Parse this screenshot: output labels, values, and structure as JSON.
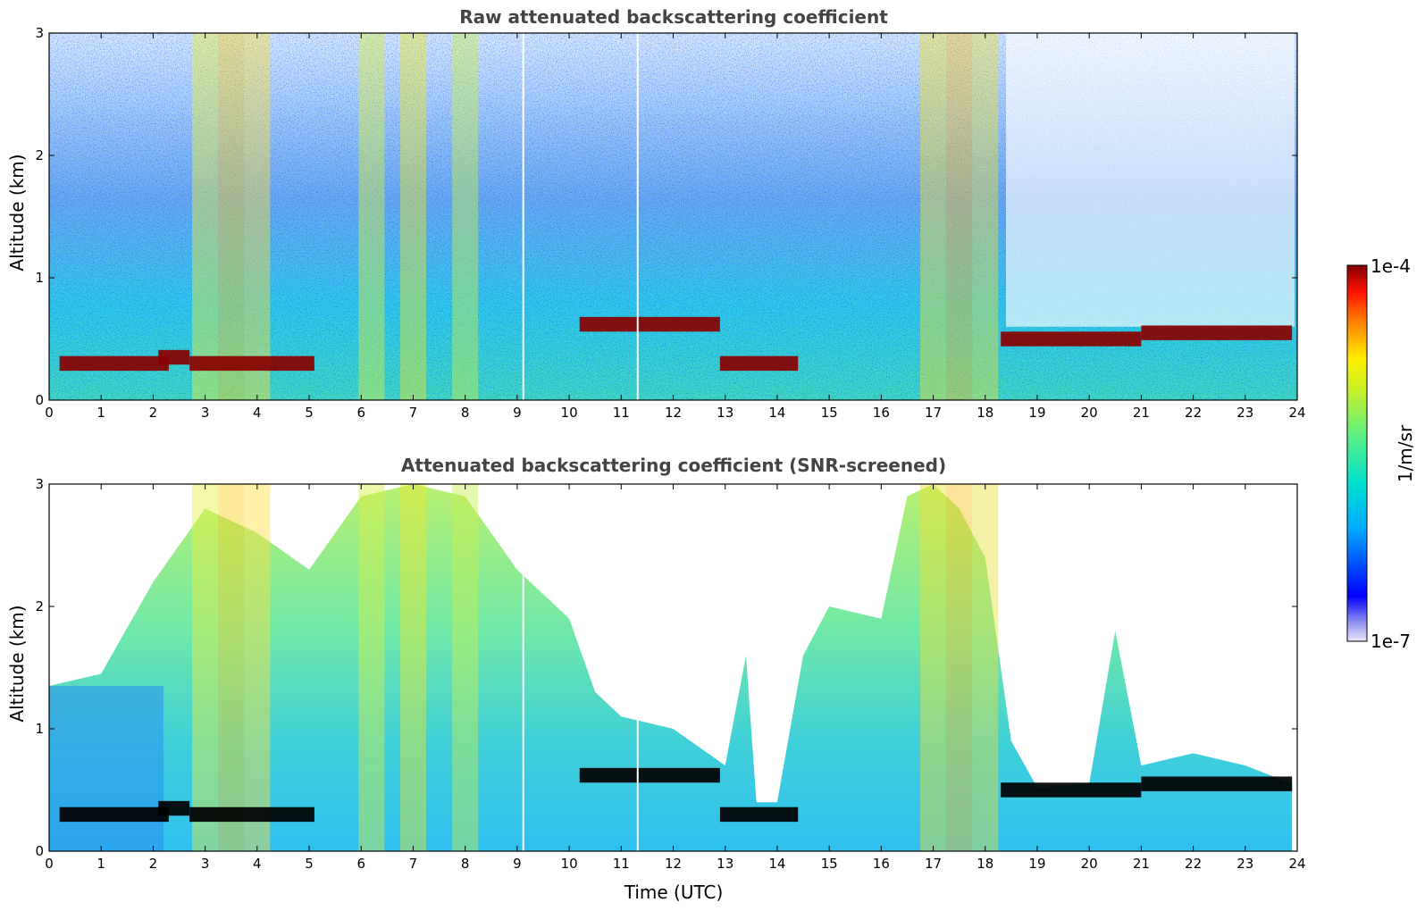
{
  "chart_data": [
    {
      "type": "heatmap",
      "title": "Raw attenuated backscattering coefficient",
      "xlabel": "",
      "ylabel": "Altitude (km)",
      "xlim": [
        0,
        24
      ],
      "ylim": [
        0,
        3
      ],
      "xticks": [
        "0",
        "1",
        "2",
        "3",
        "4",
        "5",
        "6",
        "7",
        "8",
        "9",
        "10",
        "11",
        "12",
        "13",
        "14",
        "15",
        "16",
        "17",
        "18",
        "19",
        "20",
        "21",
        "22",
        "23",
        "24"
      ],
      "yticks": [
        "0",
        "1",
        "2",
        "3"
      ],
      "cloud_layers": [
        {
          "x_start": 0.2,
          "x_end": 2.3,
          "altitude": 0.3
        },
        {
          "x_start": 2.1,
          "x_end": 2.7,
          "altitude": 0.35
        },
        {
          "x_start": 2.7,
          "x_end": 5.1,
          "altitude": 0.3
        },
        {
          "x_start": 10.2,
          "x_end": 12.9,
          "altitude": 0.62
        },
        {
          "x_start": 12.9,
          "x_end": 14.4,
          "altitude": 0.3
        },
        {
          "x_start": 18.3,
          "x_end": 21.0,
          "altitude": 0.5
        },
        {
          "x_start": 21.0,
          "x_end": 23.9,
          "altitude": 0.55
        }
      ]
    },
    {
      "type": "heatmap",
      "title": "Attenuated backscattering coefficient (SNR-screened)",
      "xlabel": "Time (UTC)",
      "ylabel": "Altitude (km)",
      "xlim": [
        0,
        24
      ],
      "ylim": [
        0,
        3
      ],
      "xticks": [
        "0",
        "1",
        "2",
        "3",
        "4",
        "5",
        "6",
        "7",
        "8",
        "9",
        "10",
        "11",
        "12",
        "13",
        "14",
        "15",
        "16",
        "17",
        "18",
        "19",
        "20",
        "21",
        "22",
        "23",
        "24"
      ],
      "yticks": [
        "0",
        "1",
        "2",
        "3"
      ],
      "signal_top_km": {
        "x": [
          0,
          1,
          2,
          3,
          4,
          5,
          6,
          7,
          8,
          9,
          10,
          10.5,
          11,
          12,
          13,
          13.4,
          13.6,
          14.0,
          14.5,
          15,
          16,
          16.5,
          17,
          17.5,
          18,
          18.5,
          19,
          20,
          20.5,
          21,
          22,
          23,
          23.9
        ],
        "y": [
          1.35,
          1.45,
          2.2,
          2.8,
          2.6,
          2.3,
          2.9,
          3.0,
          2.9,
          2.3,
          1.9,
          1.3,
          1.1,
          1.0,
          0.7,
          1.6,
          0.4,
          0.4,
          1.6,
          2.0,
          1.9,
          2.9,
          3.0,
          2.8,
          2.4,
          0.9,
          0.52,
          0.55,
          1.8,
          0.7,
          0.8,
          0.7,
          0.55
        ]
      }
    }
  ],
  "colorbar": {
    "label": "1/m/sr",
    "max_label": "1e-4",
    "min_label": "1e-7",
    "scale": "log",
    "colormap": [
      "#e8e8f8",
      "#0000ff",
      "#00c8ff",
      "#40e0a0",
      "#c8f040",
      "#ffff00",
      "#ff8000",
      "#ff0000",
      "#800000"
    ]
  }
}
